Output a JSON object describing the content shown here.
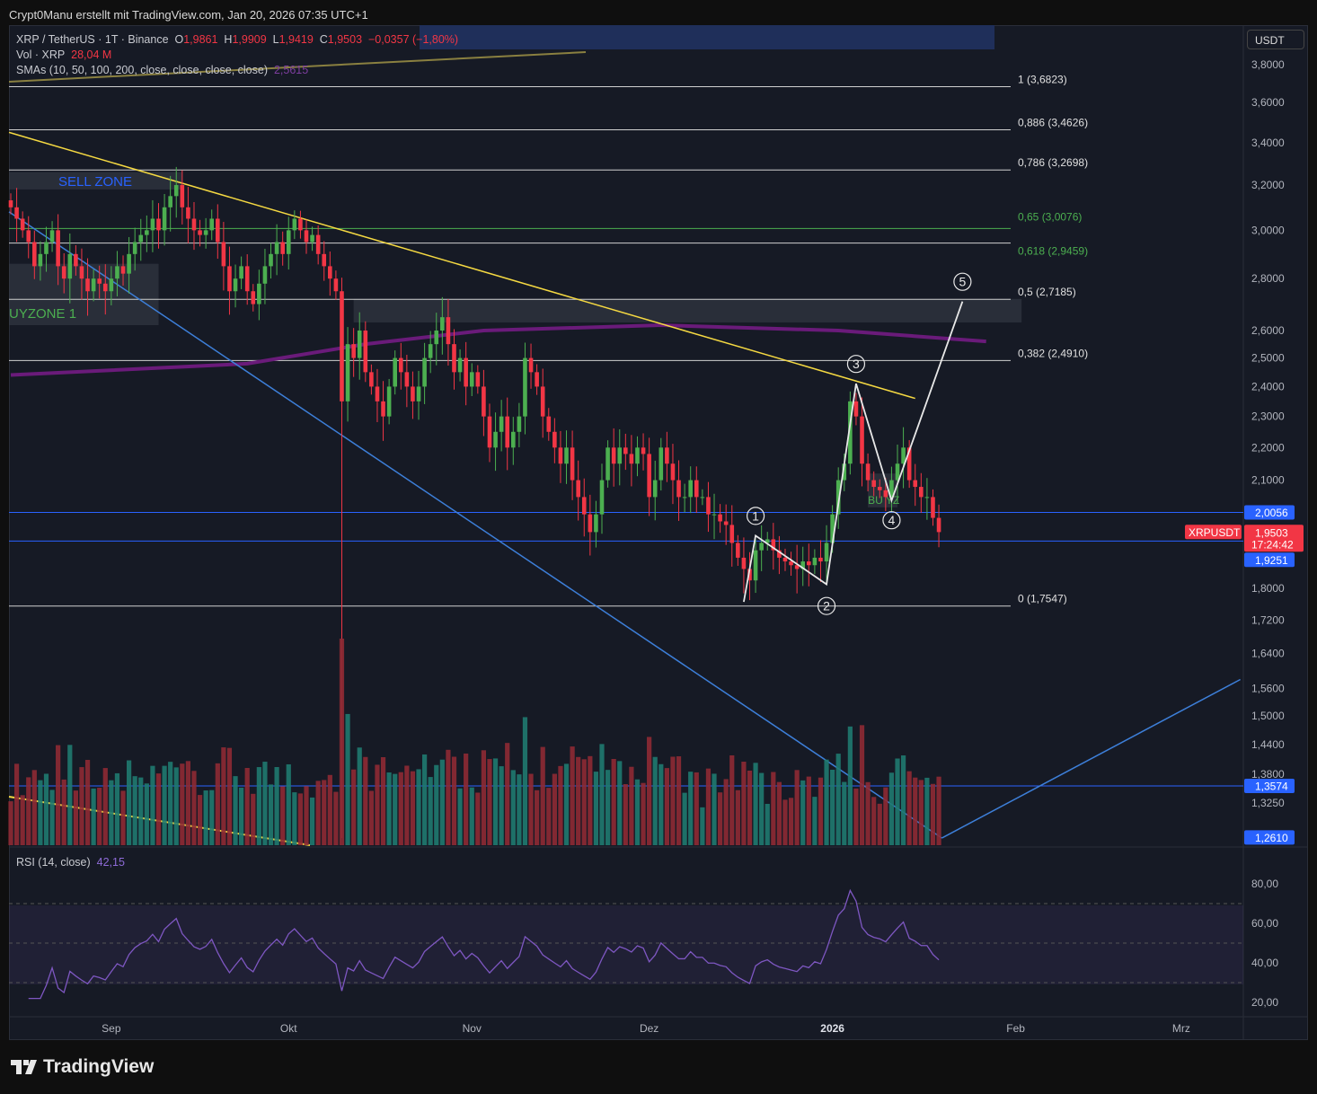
{
  "credit": "Crypt0Manu erstellt mit TradingView.com, Jan 20, 2026 07:35 UTC+1",
  "legend": {
    "symbol": "XRP / TetherUS · 1T · Binance",
    "o_label": "O",
    "o": "1,9861",
    "h_label": "H",
    "h": "1,9909",
    "l_label": "L",
    "l": "1,9419",
    "c_label": "C",
    "c": "1,9503",
    "change": "−0,0357 (−1,80%)",
    "vol_label": "Vol · XRP",
    "vol": "28,04 M",
    "sma_label": "SMAs (10, 50, 100, 200, close, close, close, close)",
    "sma_value": "2,5615",
    "rsi_label": "RSI (14, close)",
    "rsi_value": "42,15"
  },
  "currency_button": "USDT",
  "brand": "TradingView",
  "colors": {
    "up": "#26a69a",
    "down": "#f23645",
    "candle_up": "#4caf50",
    "fib": "#ffffff",
    "trend_yellow": "#f5d942",
    "trend_blue": "#3d7fd9",
    "sma": "#6a1b7a",
    "rsi": "#7e57c2"
  },
  "chart_data": {
    "type": "candlestick",
    "title": "XRP / TetherUS · 1T · Binance",
    "start_date": "2025-08-15",
    "scale": "log",
    "ylim": [
      1.24,
      3.85
    ],
    "closes": [
      3.1,
      3.05,
      3.0,
      2.95,
      2.85,
      2.9,
      2.95,
      3.0,
      2.85,
      2.8,
      2.9,
      2.85,
      2.8,
      2.75,
      2.8,
      2.78,
      2.75,
      2.8,
      2.85,
      2.82,
      2.9,
      2.95,
      2.98,
      3.0,
      3.05,
      3.0,
      3.1,
      3.15,
      3.2,
      3.1,
      3.05,
      3.0,
      2.98,
      3.0,
      3.05,
      2.95,
      2.85,
      2.75,
      2.8,
      2.85,
      2.75,
      2.7,
      2.78,
      2.85,
      2.9,
      2.95,
      2.9,
      3.0,
      3.05,
      3.0,
      2.95,
      2.98,
      2.9,
      2.85,
      2.8,
      2.75,
      2.35,
      2.55,
      2.5,
      2.6,
      2.45,
      2.4,
      2.35,
      2.3,
      2.4,
      2.5,
      2.45,
      2.4,
      2.35,
      2.4,
      2.5,
      2.55,
      2.6,
      2.65,
      2.55,
      2.45,
      2.5,
      2.4,
      2.45,
      2.4,
      2.3,
      2.2,
      2.25,
      2.3,
      2.2,
      2.25,
      2.3,
      2.5,
      2.45,
      2.4,
      2.3,
      2.25,
      2.2,
      2.15,
      2.2,
      2.1,
      2.05,
      2.0,
      1.95,
      2.0,
      2.1,
      2.2,
      2.15,
      2.2,
      2.18,
      2.15,
      2.2,
      2.18,
      2.05,
      2.1,
      2.2,
      2.15,
      2.1,
      2.05,
      2.05,
      2.1,
      2.05,
      2.05,
      2.0,
      2.0,
      1.98,
      1.97,
      1.92,
      1.88,
      1.85,
      1.82,
      1.9,
      1.92,
      1.93,
      1.9,
      1.88,
      1.87,
      1.86,
      1.85,
      1.87,
      1.86,
      1.88,
      1.87,
      1.92,
      2.0,
      2.1,
      2.15,
      2.35,
      2.3,
      2.15,
      2.1,
      2.08,
      2.07,
      2.05,
      2.1,
      2.15,
      2.2,
      2.1,
      2.08,
      2.05,
      2.05,
      1.99,
      1.95
    ],
    "sma200": [
      [
        0,
        2.44
      ],
      [
        40,
        2.48
      ],
      [
        60,
        2.55
      ],
      [
        80,
        2.6
      ],
      [
        110,
        2.62
      ],
      [
        140,
        2.6
      ],
      [
        165,
        2.56
      ]
    ],
    "price_ticks": [
      "3,8000",
      "3,6000",
      "3,4000",
      "3,2000",
      "3,0000",
      "2,8000",
      "2,6000",
      "2,5000",
      "2,4000",
      "2,3000",
      "2,2000",
      "2,1000",
      "1,8000",
      "1,7200",
      "1,6400",
      "1,5600",
      "1,5000",
      "1,4400",
      "1,3800",
      "1,3250"
    ],
    "price_tick_values": [
      3.8,
      3.6,
      3.4,
      3.2,
      3.0,
      2.8,
      2.6,
      2.5,
      2.4,
      2.3,
      2.2,
      2.1,
      1.8,
      1.72,
      1.64,
      1.56,
      1.5,
      1.44,
      1.38,
      1.325
    ],
    "price_badges": [
      {
        "label": "2,0056",
        "value": 2.0056,
        "color": "#2962ff"
      },
      {
        "label": "1,9251",
        "value": 1.9251,
        "color": "#2962ff"
      },
      {
        "label": "1,3574",
        "value": 1.3574,
        "color": "#2962ff"
      },
      {
        "label": "1,2610",
        "value": 1.261,
        "color": "#2962ff"
      }
    ],
    "last_price": {
      "label": "1,9503",
      "countdown": "17:24:42",
      "symbol": "XRPUSDT",
      "value": 1.9503
    },
    "time_ticks": [
      {
        "label": "Sep",
        "day": 17
      },
      {
        "label": "Okt",
        "day": 47
      },
      {
        "label": "Nov",
        "day": 78
      },
      {
        "label": "Dez",
        "day": 108
      },
      {
        "label": "2026",
        "day": 139,
        "bold": true
      },
      {
        "label": "Feb",
        "day": 170
      },
      {
        "label": "Mrz",
        "day": 198
      }
    ],
    "fib_levels": [
      {
        "label": "1 (3,6823)",
        "value": 3.6823
      },
      {
        "label": "0,886 (3,4626)",
        "value": 3.4626
      },
      {
        "label": "0,786 (3,2698)",
        "value": 3.2698
      },
      {
        "label": "0,65 (3,0076)",
        "value": 3.0076,
        "green": true
      },
      {
        "label": "0,618 (2,9459)",
        "value": 2.9459,
        "green": true
      },
      {
        "label": "0,5 (2,7185)",
        "value": 2.7185
      },
      {
        "label": "0,382 (2,4910)",
        "value": 2.491
      },
      {
        "label": "0 (1,7547)",
        "value": 1.7547
      }
    ],
    "zones": [
      {
        "label": "SELL ZONE",
        "d0": -0.3,
        "d1": 29,
        "p0": 3.18,
        "p1": 3.26,
        "tc": "#2962ff"
      },
      {
        "label": "UYZONE 1",
        "d0": -0.3,
        "d1": 25,
        "p0": 2.62,
        "p1": 2.86,
        "tc": "#4caf50"
      },
      {
        "label": "",
        "d0": 58,
        "d1": 171,
        "p0": 2.63,
        "p1": 2.72,
        "tc": ""
      },
      {
        "label": "BU YZ",
        "d0": 145,
        "d1": 150,
        "p0": 2.02,
        "p1": 2.12,
        "tc": "#4caf50"
      }
    ],
    "waves": [
      {
        "label": "1",
        "day": 126,
        "price": 1.94,
        "pos": "up"
      },
      {
        "label": "2",
        "day": 138,
        "price": 1.805,
        "pos": "down"
      },
      {
        "label": "3",
        "day": 143,
        "price": 2.41,
        "pos": "up"
      },
      {
        "label": "4",
        "day": 149,
        "price": 2.04,
        "pos": "down"
      },
      {
        "label": "5",
        "day": 161,
        "price": 2.71,
        "pos": "up"
      }
    ],
    "wave_path": [
      [
        124,
        1.765
      ],
      [
        126,
        1.94
      ],
      [
        138,
        1.81
      ],
      [
        143,
        2.41
      ],
      [
        149,
        2.04
      ],
      [
        161,
        2.71
      ]
    ],
    "trendlines": [
      {
        "color": "#f5d942",
        "pts": [
          [
            -0.3,
            3.45
          ],
          [
            153,
            2.36
          ]
        ]
      },
      {
        "color": "#3d7fd9",
        "pts": [
          [
            -0.3,
            3.08
          ],
          [
            157.5,
            1.26
          ]
        ]
      },
      {
        "color": "#3d7fd9",
        "pts": [
          [
            157.5,
            1.26
          ],
          [
            208,
            1.58
          ]
        ]
      }
    ],
    "rsi": {
      "period": 14,
      "levels": [
        70,
        50,
        30
      ],
      "ticks": [
        "80,00",
        "60,00",
        "40,00",
        "20,00"
      ],
      "tick_values": [
        80,
        60,
        40,
        20
      ]
    }
  }
}
